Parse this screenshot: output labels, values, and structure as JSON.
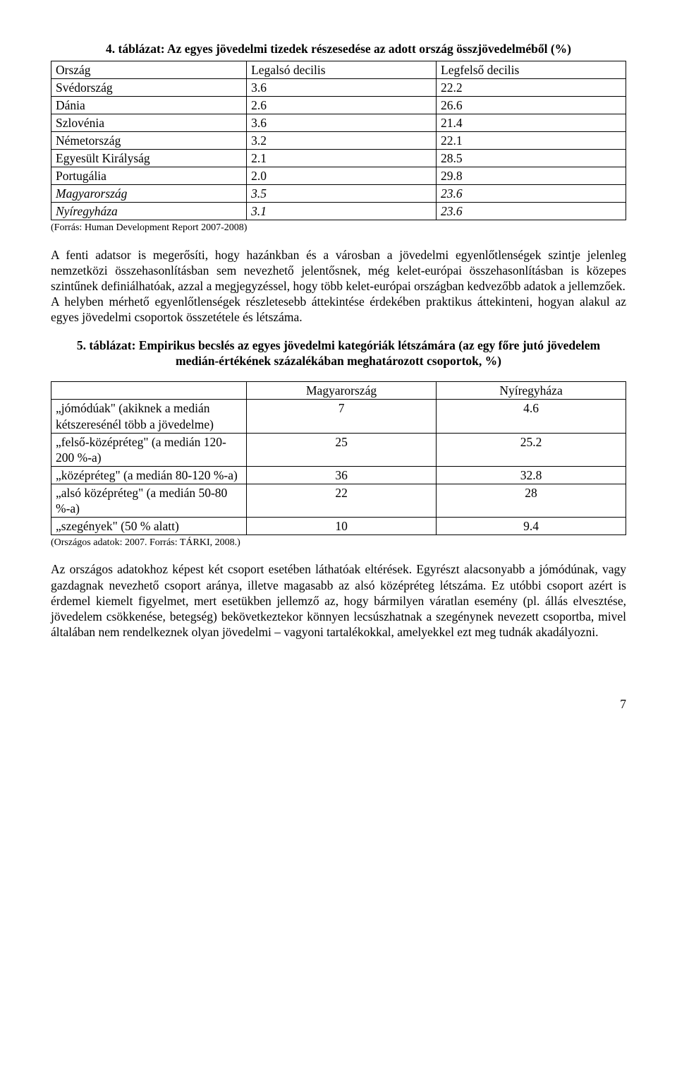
{
  "table4": {
    "title": "4. táblázat: Az egyes jövedelmi tizedek részesedése az adott ország összjövedelméből (%)",
    "header": {
      "c0": "Ország",
      "c1": "Legalsó decilis",
      "c2": "Legfelső decilis"
    },
    "rows": [
      {
        "c0": "Svédország",
        "c1": "3.6",
        "c2": "22.2"
      },
      {
        "c0": "Dánia",
        "c1": "2.6",
        "c2": "26.6"
      },
      {
        "c0": "Szlovénia",
        "c1": "3.6",
        "c2": "21.4"
      },
      {
        "c0": "Németország",
        "c1": "3.2",
        "c2": "22.1"
      },
      {
        "c0": "Egyesült Királyság",
        "c1": "2.1",
        "c2": "28.5"
      },
      {
        "c0": "Portugália",
        "c1": "2.0",
        "c2": "29.8"
      },
      {
        "c0": "Magyarország",
        "c1": "3.5",
        "c2": "23.6",
        "italic": true
      },
      {
        "c0": "Nyíregyháza",
        "c1": "3.1",
        "c2": "23.6",
        "italic": true
      }
    ],
    "source": "(Forrás: Human Development Report 2007-2008)"
  },
  "para1": "A fenti adatsor is megerősíti, hogy hazánkban és a városban a jövedelmi egyenlőtlenségek szintje jelenleg nemzetközi összehasonlításban sem nevezhető jelentősnek, még kelet-európai összehasonlításban is közepes szintűnek definiálhatóak, azzal a megjegyzéssel, hogy több kelet-európai országban kedvezőbb adatok a jellemzőek.",
  "para2": "A helyben mérhető egyenlőtlenségek részletesebb áttekintése érdekében praktikus áttekinteni, hogyan alakul az egyes jövedelmi csoportok összetétele és létszáma.",
  "table5": {
    "title": "5. táblázat: Empirikus becslés az egyes jövedelmi kategóriák létszámára (az egy főre jutó jövedelem medián-értékének százalékában meghatározott csoportok, %)",
    "header": {
      "c0": "",
      "c1": "Magyarország",
      "c2": "Nyíregyháza"
    },
    "rows": [
      {
        "c0": "„jómódúak\" (akiknek a medián kétszeresénél több a jövedelme)",
        "c1": "7",
        "c2": "4.6"
      },
      {
        "c0": "„felső-középréteg\" (a medián 120-200 %-a)",
        "c1": "25",
        "c2": "25.2"
      },
      {
        "c0": "„középréteg\" (a medián 80-120 %-a)",
        "c1": "36",
        "c2": "32.8"
      },
      {
        "c0": "„alsó középréteg\" (a medián 50-80 %-a)",
        "c1": "22",
        "c2": "28"
      },
      {
        "c0": "„szegények\" (50 % alatt)",
        "c1": "10",
        "c2": "9.4"
      }
    ],
    "source": "(Országos adatok: 2007. Forrás: TÁRKI, 2008.)"
  },
  "para3": "Az országos adatokhoz képest két csoport esetében láthatóak eltérések. Egyrészt alacsonyabb a jómódúnak, vagy gazdagnak nevezhető csoport aránya, illetve magasabb az alsó középréteg létszáma. Ez utóbbi csoport azért is érdemel kiemelt figyelmet, mert esetükben jellemző az, hogy bármilyen váratlan esemény (pl. állás elvesztése, jövedelem csökkenése, betegség) bekövetkeztekor könnyen lecsúszhatnak a szegénynek nevezett csoportba, mivel általában nem rendelkeznek olyan jövedelmi – vagyoni tartalékokkal, amelyekkel ezt meg tudnák akadályozni.",
  "page_number": "7",
  "layout": {
    "table4_col_widths": [
      "34%",
      "33%",
      "33%"
    ],
    "table5_col_widths": [
      "34%",
      "33%",
      "33%"
    ]
  }
}
